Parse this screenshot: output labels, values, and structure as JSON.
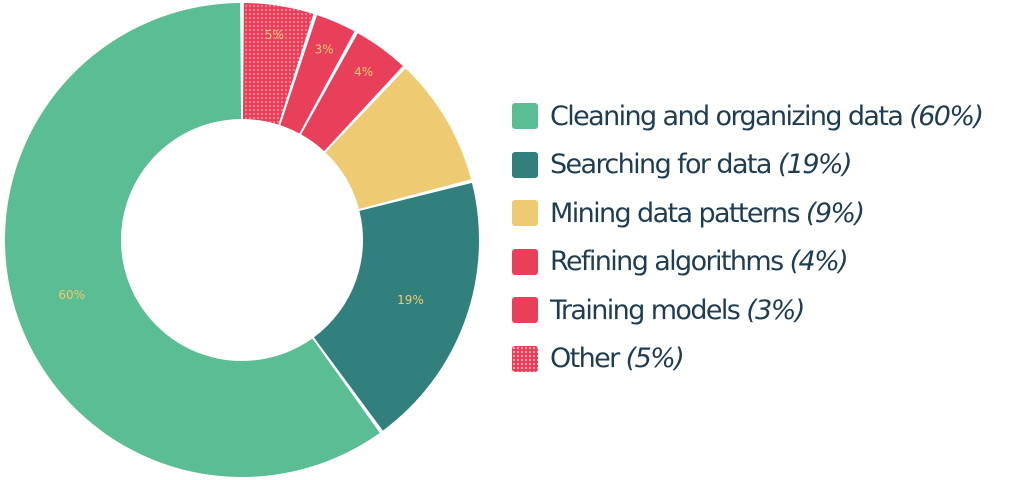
{
  "chart_data": {
    "type": "pie",
    "style": "donut",
    "legend_position": "right",
    "slices": [
      {
        "label": "Cleaning and organizing data",
        "value": 60,
        "data_label": "60%",
        "legend_pct": "(60%)",
        "color": "#5bbd93",
        "pattern": "solid",
        "label_color": "#f3cb6b"
      },
      {
        "label": "Searching for data",
        "value": 19,
        "data_label": "19%",
        "legend_pct": "(19%)",
        "color": "#31807e",
        "pattern": "solid",
        "label_color": "#f3cb6b"
      },
      {
        "label": "Mining data patterns",
        "value": 9,
        "data_label": "",
        "legend_pct": "(9%)",
        "color": "#eecb72",
        "pattern": "solid",
        "label_color": "#f3cb6b"
      },
      {
        "label": "Refining algorithms",
        "value": 4,
        "data_label": "4%",
        "legend_pct": "(4%)",
        "color": "#e8405a",
        "pattern": "solid",
        "label_color": "#f3cb6b"
      },
      {
        "label": "Training models",
        "value": 3,
        "data_label": "3%",
        "legend_pct": "(3%)",
        "color": "#e8405a",
        "pattern": "solid",
        "label_color": "#f3cb6b"
      },
      {
        "label": "Other",
        "value": 5,
        "data_label": "5%",
        "legend_pct": "(5%)",
        "color": "#e8405a",
        "pattern": "dotted",
        "label_color": "#f3cb6b"
      }
    ]
  }
}
